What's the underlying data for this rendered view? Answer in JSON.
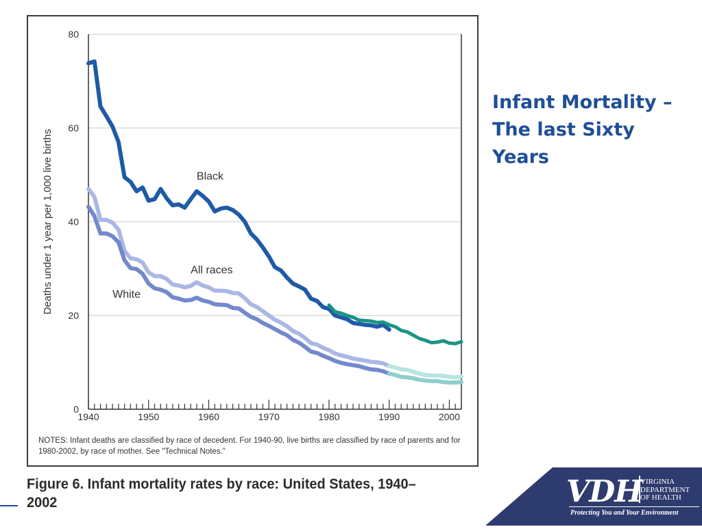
{
  "slide": {
    "title": "Infant Mortality – The last Sixty Years"
  },
  "figure": {
    "caption": "Figure 6. Infant mortality rates by race: United States, 1940–2002",
    "notes": "NOTES: Infant deaths are classified by race of decedent.  For 1940-90, live births are classified by race of parents and for 1980-2002, by race of mother. See \"Technical Notes.\""
  },
  "logo": {
    "mark": "VDH",
    "department": [
      "VIRGINIA",
      "DEPARTMENT",
      "OF HEALTH"
    ],
    "tagline": "Protecting You and Your Environment",
    "background_color": "#2e3b6e"
  },
  "chart_data": {
    "type": "line",
    "title": "",
    "xlabel": "",
    "ylabel": "Deaths under 1 year per 1,000 live births",
    "xlim": [
      1940,
      2002
    ],
    "ylim": [
      0,
      80
    ],
    "x_ticks": [
      1940,
      1950,
      1960,
      1970,
      1980,
      1990,
      2000
    ],
    "y_ticks": [
      0,
      20,
      40,
      60,
      80
    ],
    "grid": {
      "horizontal": true,
      "vertical": false
    },
    "series": [
      {
        "name": "Black",
        "segment": "1940-1990, race of parents",
        "color": "#1f5aa6",
        "width": 6,
        "points": [
          [
            1940,
            73.8
          ],
          [
            1941,
            74.2
          ],
          [
            1942,
            64.6
          ],
          [
            1943,
            62.5
          ],
          [
            1944,
            60.3
          ],
          [
            1945,
            57.0
          ],
          [
            1946,
            49.5
          ],
          [
            1947,
            48.5
          ],
          [
            1948,
            46.5
          ],
          [
            1949,
            47.3
          ],
          [
            1950,
            44.5
          ],
          [
            1951,
            44.8
          ],
          [
            1952,
            47.0
          ],
          [
            1953,
            45.0
          ],
          [
            1954,
            43.5
          ],
          [
            1955,
            43.7
          ],
          [
            1956,
            43.0
          ],
          [
            1957,
            44.8
          ],
          [
            1958,
            46.5
          ],
          [
            1959,
            45.5
          ],
          [
            1960,
            44.3
          ],
          [
            1961,
            42.2
          ],
          [
            1962,
            42.8
          ],
          [
            1963,
            43.0
          ],
          [
            1964,
            42.5
          ],
          [
            1965,
            41.5
          ],
          [
            1966,
            40.0
          ],
          [
            1967,
            37.5
          ],
          [
            1968,
            36.2
          ],
          [
            1969,
            34.5
          ],
          [
            1970,
            32.6
          ],
          [
            1971,
            30.3
          ],
          [
            1972,
            29.6
          ],
          [
            1973,
            28.1
          ],
          [
            1974,
            26.8
          ],
          [
            1975,
            26.2
          ],
          [
            1976,
            25.5
          ],
          [
            1977,
            23.6
          ],
          [
            1978,
            23.1
          ],
          [
            1979,
            21.8
          ],
          [
            1980,
            21.4
          ],
          [
            1981,
            20.0
          ],
          [
            1982,
            19.6
          ],
          [
            1983,
            19.2
          ],
          [
            1984,
            18.4
          ],
          [
            1985,
            18.2
          ],
          [
            1986,
            18.0
          ],
          [
            1987,
            17.9
          ],
          [
            1988,
            17.6
          ],
          [
            1989,
            18.0
          ],
          [
            1990,
            17.0
          ]
        ]
      },
      {
        "name": "Black",
        "segment": "1980-2002, race of mother",
        "color": "#1a9484",
        "width": 5,
        "points": [
          [
            1980,
            22.2
          ],
          [
            1981,
            20.8
          ],
          [
            1982,
            20.5
          ],
          [
            1983,
            20.0
          ],
          [
            1984,
            19.6
          ],
          [
            1985,
            19.0
          ],
          [
            1986,
            18.9
          ],
          [
            1987,
            18.8
          ],
          [
            1988,
            18.5
          ],
          [
            1989,
            18.6
          ],
          [
            1990,
            18.0
          ],
          [
            1991,
            17.6
          ],
          [
            1992,
            16.8
          ],
          [
            1993,
            16.5
          ],
          [
            1994,
            15.8
          ],
          [
            1995,
            15.1
          ],
          [
            1996,
            14.7
          ],
          [
            1997,
            14.2
          ],
          [
            1998,
            14.3
          ],
          [
            1999,
            14.6
          ],
          [
            2000,
            14.1
          ],
          [
            2001,
            14.0
          ],
          [
            2002,
            14.4
          ]
        ]
      },
      {
        "name": "All races",
        "color": "#aab7e4",
        "width": 6,
        "points": [
          [
            1940,
            47.0
          ],
          [
            1941,
            45.3
          ],
          [
            1942,
            40.4
          ],
          [
            1943,
            40.4
          ],
          [
            1944,
            39.8
          ],
          [
            1945,
            38.3
          ],
          [
            1946,
            33.8
          ],
          [
            1947,
            32.2
          ],
          [
            1948,
            32.0
          ],
          [
            1949,
            31.3
          ],
          [
            1950,
            29.2
          ],
          [
            1951,
            28.4
          ],
          [
            1952,
            28.4
          ],
          [
            1953,
            27.8
          ],
          [
            1954,
            26.6
          ],
          [
            1955,
            26.4
          ],
          [
            1956,
            26.0
          ],
          [
            1957,
            26.3
          ],
          [
            1958,
            27.1
          ],
          [
            1959,
            26.4
          ],
          [
            1960,
            26.0
          ],
          [
            1961,
            25.3
          ],
          [
            1962,
            25.3
          ],
          [
            1963,
            25.2
          ],
          [
            1964,
            24.8
          ],
          [
            1965,
            24.7
          ],
          [
            1966,
            23.7
          ],
          [
            1967,
            22.4
          ],
          [
            1968,
            21.8
          ],
          [
            1969,
            20.9
          ],
          [
            1970,
            20.0
          ],
          [
            1971,
            19.1
          ],
          [
            1972,
            18.5
          ],
          [
            1973,
            17.7
          ],
          [
            1974,
            16.7
          ],
          [
            1975,
            16.1
          ],
          [
            1976,
            15.2
          ],
          [
            1977,
            14.1
          ],
          [
            1978,
            13.8
          ],
          [
            1979,
            13.1
          ],
          [
            1980,
            12.6
          ],
          [
            1981,
            11.9
          ],
          [
            1982,
            11.5
          ],
          [
            1983,
            11.2
          ],
          [
            1984,
            10.8
          ],
          [
            1985,
            10.6
          ],
          [
            1986,
            10.4
          ],
          [
            1987,
            10.1
          ],
          [
            1988,
            10.0
          ],
          [
            1989,
            9.8
          ],
          [
            1990,
            9.2
          ]
        ]
      },
      {
        "name": "All races",
        "segment": "1990-2002",
        "color": "#b9e4e1",
        "width": 6,
        "points": [
          [
            1990,
            9.2
          ],
          [
            1991,
            8.9
          ],
          [
            1992,
            8.5
          ],
          [
            1993,
            8.4
          ],
          [
            1994,
            8.0
          ],
          [
            1995,
            7.6
          ],
          [
            1996,
            7.3
          ],
          [
            1997,
            7.2
          ],
          [
            1998,
            7.2
          ],
          [
            1999,
            7.1
          ],
          [
            2000,
            6.9
          ],
          [
            2001,
            6.8
          ],
          [
            2002,
            7.0
          ]
        ]
      },
      {
        "name": "White",
        "color": "#7389cc",
        "width": 6,
        "points": [
          [
            1940,
            43.2
          ],
          [
            1941,
            41.2
          ],
          [
            1942,
            37.5
          ],
          [
            1943,
            37.5
          ],
          [
            1944,
            36.9
          ],
          [
            1945,
            35.6
          ],
          [
            1946,
            31.8
          ],
          [
            1947,
            30.1
          ],
          [
            1948,
            29.9
          ],
          [
            1949,
            28.9
          ],
          [
            1950,
            26.8
          ],
          [
            1951,
            25.8
          ],
          [
            1952,
            25.5
          ],
          [
            1953,
            25.0
          ],
          [
            1954,
            23.9
          ],
          [
            1955,
            23.6
          ],
          [
            1956,
            23.2
          ],
          [
            1957,
            23.3
          ],
          [
            1958,
            23.8
          ],
          [
            1959,
            23.2
          ],
          [
            1960,
            22.9
          ],
          [
            1961,
            22.4
          ],
          [
            1962,
            22.3
          ],
          [
            1963,
            22.2
          ],
          [
            1964,
            21.6
          ],
          [
            1965,
            21.5
          ],
          [
            1966,
            20.6
          ],
          [
            1967,
            19.7
          ],
          [
            1968,
            19.2
          ],
          [
            1969,
            18.4
          ],
          [
            1970,
            17.8
          ],
          [
            1971,
            17.1
          ],
          [
            1972,
            16.4
          ],
          [
            1973,
            15.8
          ],
          [
            1974,
            14.8
          ],
          [
            1975,
            14.2
          ],
          [
            1976,
            13.3
          ],
          [
            1977,
            12.3
          ],
          [
            1978,
            12.0
          ],
          [
            1979,
            11.4
          ],
          [
            1980,
            10.9
          ],
          [
            1981,
            10.3
          ],
          [
            1982,
            9.9
          ],
          [
            1983,
            9.6
          ],
          [
            1984,
            9.4
          ],
          [
            1985,
            9.2
          ],
          [
            1986,
            8.8
          ],
          [
            1987,
            8.5
          ],
          [
            1988,
            8.4
          ],
          [
            1989,
            8.1
          ],
          [
            1990,
            7.6
          ]
        ]
      },
      {
        "name": "White",
        "segment": "1990-2002",
        "color": "#8fcfcb",
        "width": 6,
        "points": [
          [
            1990,
            7.6
          ],
          [
            1991,
            7.3
          ],
          [
            1992,
            6.9
          ],
          [
            1993,
            6.8
          ],
          [
            1994,
            6.6
          ],
          [
            1995,
            6.3
          ],
          [
            1996,
            6.1
          ],
          [
            1997,
            6.0
          ],
          [
            1998,
            6.0
          ],
          [
            1999,
            5.8
          ],
          [
            2000,
            5.7
          ],
          [
            2001,
            5.7
          ],
          [
            2002,
            5.8
          ]
        ]
      }
    ],
    "annotations": [
      {
        "text": "Black",
        "at": [
          1958,
          49
        ]
      },
      {
        "text": "All races",
        "at": [
          1957,
          29
        ]
      },
      {
        "text": "White",
        "at": [
          1944,
          23.8
        ]
      }
    ]
  }
}
